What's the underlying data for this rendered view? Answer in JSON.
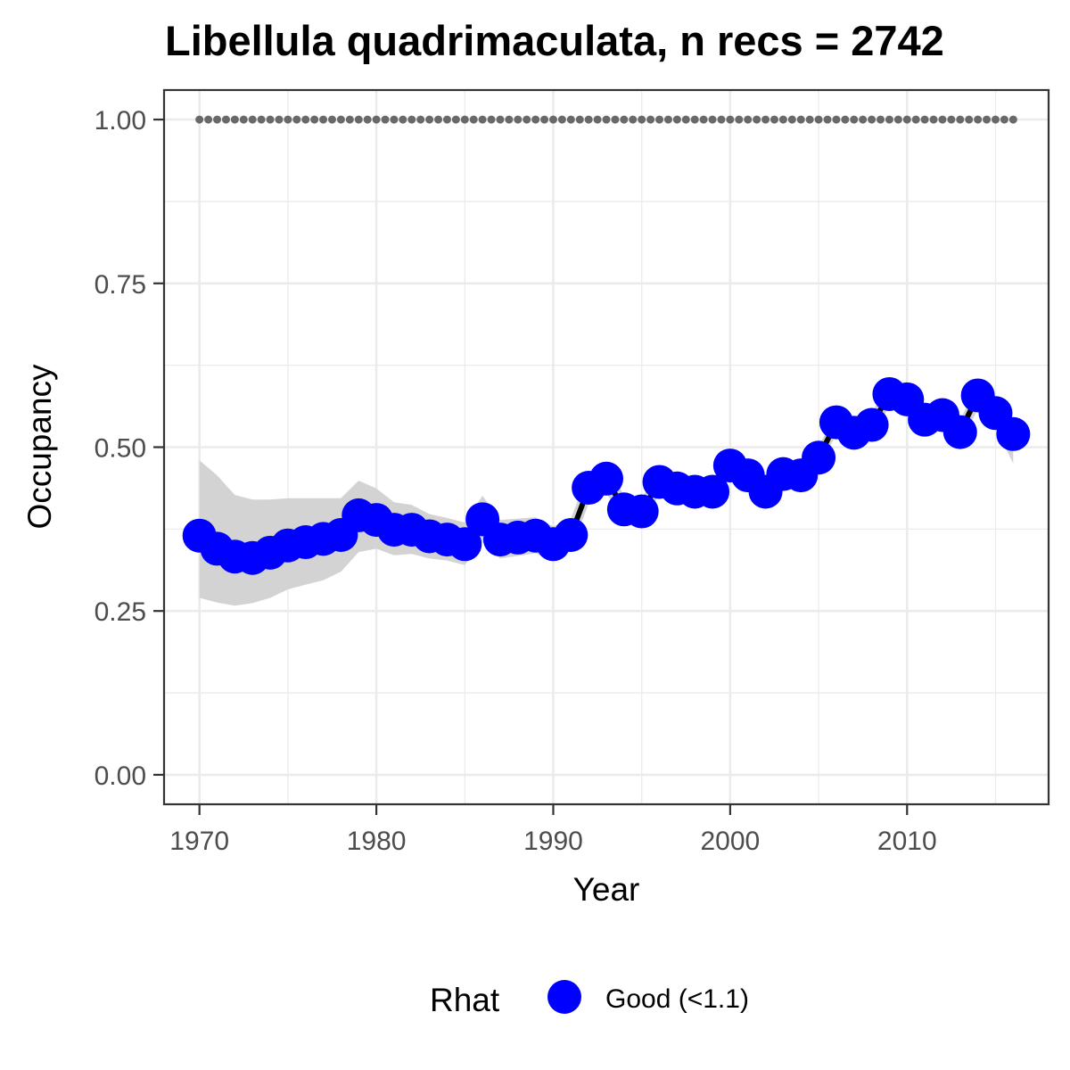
{
  "chart_data": {
    "type": "line",
    "title": "Libellula quadrimaculata, n recs = 2742",
    "xlabel": "Year",
    "ylabel": "Occupancy",
    "xlim": [
      1968,
      2018
    ],
    "ylim": [
      -0.045,
      1.045
    ],
    "x_ticks": [
      1970,
      1980,
      1990,
      2000,
      2010
    ],
    "x_tick_labels": [
      "1970",
      "1980",
      "1990",
      "2000",
      "2010"
    ],
    "y_ticks": [
      0,
      0.25,
      0.5,
      0.75,
      1.0
    ],
    "y_tick_labels": [
      "0.00",
      "0.25",
      "0.50",
      "0.75",
      "1.00"
    ],
    "grid": true,
    "legend": {
      "placement": "bottom",
      "title": "Rhat",
      "entries": [
        {
          "label": "Good (<1.1)",
          "color": "#0000ff"
        }
      ]
    },
    "colors": {
      "points": "#0000ff",
      "line": "#000000",
      "ribbon": "#d3d3d3",
      "reference_points": "#696969",
      "grid": "#ebebeb",
      "panel_border": "#333333"
    },
    "reference_line": {
      "y": 1.0,
      "style": "dotted"
    },
    "series": [
      {
        "x": [
          1970,
          1971,
          1972,
          1973,
          1974,
          1975,
          1976,
          1977,
          1978,
          1979,
          1980,
          1981,
          1982,
          1983,
          1984,
          1985,
          1986,
          1987,
          1988,
          1989,
          1990,
          1991,
          1992,
          1993,
          1994,
          1995,
          1996,
          1997,
          1998,
          1999,
          2000,
          2001,
          2002,
          2003,
          2004,
          2005,
          2006,
          2007,
          2008,
          2009,
          2010,
          2011,
          2012,
          2013,
          2014,
          2015,
          2016
        ],
        "y": [
          0.365,
          0.345,
          0.333,
          0.331,
          0.339,
          0.35,
          0.355,
          0.36,
          0.366,
          0.396,
          0.389,
          0.374,
          0.374,
          0.364,
          0.359,
          0.352,
          0.39,
          0.359,
          0.362,
          0.365,
          0.352,
          0.366,
          0.438,
          0.452,
          0.405,
          0.402,
          0.447,
          0.437,
          0.432,
          0.432,
          0.472,
          0.457,
          0.432,
          0.459,
          0.457,
          0.484,
          0.538,
          0.522,
          0.534,
          0.581,
          0.573,
          0.542,
          0.549,
          0.523,
          0.579,
          0.552,
          0.52
        ],
        "lower": [
          0.27,
          0.263,
          0.258,
          0.262,
          0.27,
          0.283,
          0.29,
          0.297,
          0.31,
          0.34,
          0.345,
          0.335,
          0.337,
          0.33,
          0.327,
          0.32,
          0.355,
          0.33,
          0.334,
          0.338,
          0.326,
          0.342,
          0.414,
          0.43,
          0.385,
          0.383,
          0.428,
          0.419,
          0.415,
          0.415,
          0.455,
          0.44,
          0.416,
          0.442,
          0.441,
          0.468,
          0.52,
          0.505,
          0.517,
          0.562,
          0.555,
          0.525,
          0.532,
          0.505,
          0.558,
          0.53,
          0.475
        ],
        "upper": [
          0.48,
          0.457,
          0.427,
          0.42,
          0.42,
          0.422,
          0.422,
          0.422,
          0.422,
          0.449,
          0.437,
          0.416,
          0.412,
          0.398,
          0.392,
          0.385,
          0.426,
          0.389,
          0.391,
          0.393,
          0.379,
          0.391,
          0.462,
          0.476,
          0.426,
          0.422,
          0.467,
          0.457,
          0.45,
          0.45,
          0.49,
          0.475,
          0.449,
          0.477,
          0.474,
          0.5,
          0.556,
          0.54,
          0.552,
          0.6,
          0.592,
          0.56,
          0.567,
          0.541,
          0.598,
          0.575,
          0.54
        ]
      }
    ]
  }
}
